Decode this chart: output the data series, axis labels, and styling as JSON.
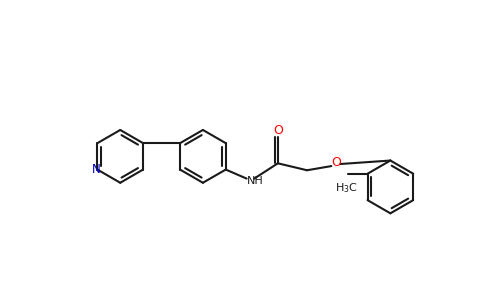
{
  "bg_color": "#ffffff",
  "bond_color": "#1a1a1a",
  "N_color": "#0000cd",
  "O_color": "#ff0000",
  "lw": 1.5,
  "fig_width": 4.84,
  "fig_height": 3.0,
  "dpi": 100,
  "r": 0.38,
  "xlim": [
    -0.3,
    5.1
  ],
  "ylim": [
    -1.05,
    1.85
  ]
}
